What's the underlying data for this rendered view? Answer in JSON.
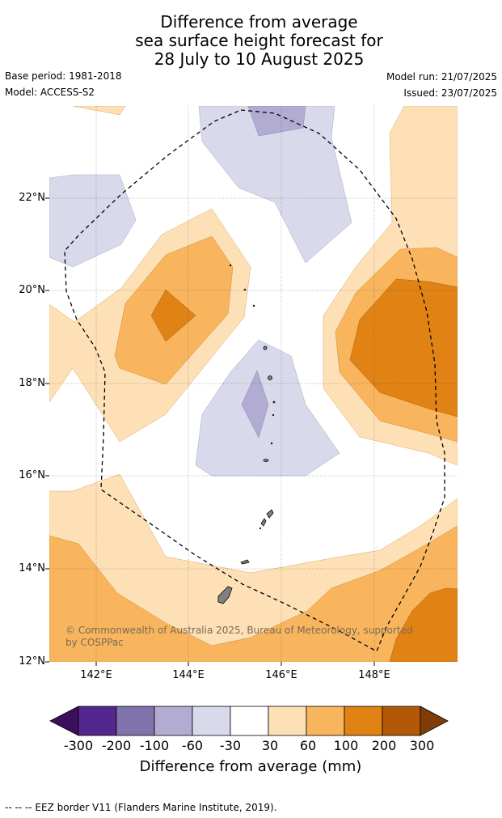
{
  "title": {
    "line1": "Difference from average",
    "line2": "sea surface height forecast for",
    "line3": "28 July to 10 August 2025"
  },
  "meta": {
    "base_period": "Base period: 1981-2018",
    "model": "Model: ACCESS-S2",
    "model_run": "Model run: 21/07/2025",
    "issued": "Issued: 23/07/2025"
  },
  "map": {
    "lat_labels": [
      "22°N",
      "20°N",
      "18°N",
      "16°N",
      "14°N",
      "12°N"
    ],
    "lon_labels": [
      "142°E",
      "144°E",
      "146°E",
      "148°E"
    ],
    "copyright": "© Commonwealth of Australia 2025, Bureau of Meteorology, supported by COSPPac",
    "eez_style": "dashed"
  },
  "colorbar": {
    "ticks": [
      "-300",
      "-200",
      "-100",
      "-60",
      "-30",
      "30",
      "60",
      "100",
      "200",
      "300"
    ],
    "colors": [
      "#3d0d5e",
      "#54278f",
      "#8073ac",
      "#b2abd2",
      "#d8daeb",
      "#ffffff",
      "#fee0b6",
      "#f9b55e",
      "#e08214",
      "#b35806",
      "#7f3b08"
    ],
    "title": "Difference from average (mm)"
  },
  "footer": "--  --  -- EEZ border V11 (Flanders Marine Institute, 2019)."
}
